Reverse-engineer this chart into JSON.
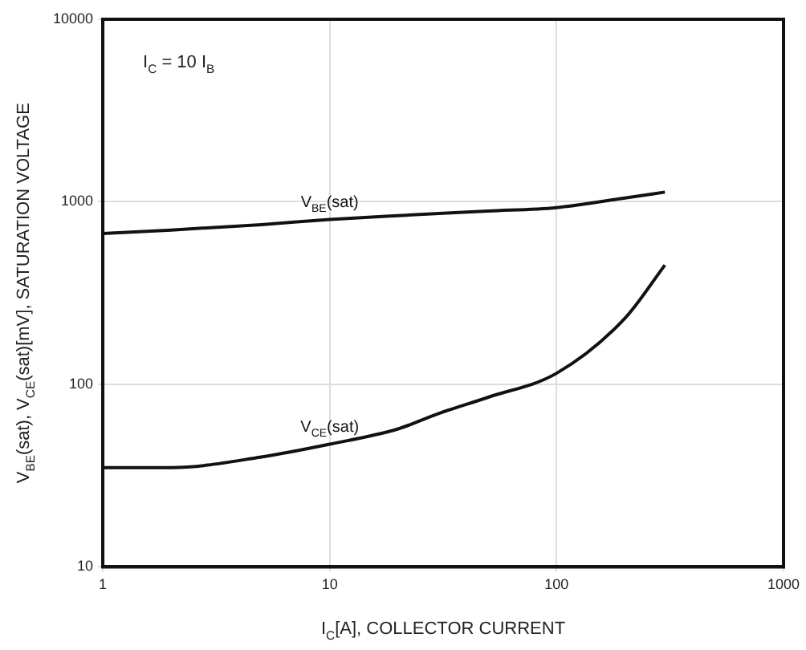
{
  "chart_data": {
    "type": "line",
    "xlabel": "I$_{C}$[A], COLLECTOR CURRENT",
    "ylabel": "V$_{BE}$(sat), V$_{CE}$(sat)[mV], SATURATION VOLTAGE",
    "annotations": [
      "I$_{C}$ = 10 I$_{B}$"
    ],
    "series": [
      {
        "name": "V$_{BE}$(sat)",
        "color": "#111111",
        "x": [
          1,
          2,
          5,
          10,
          20,
          50,
          100,
          200,
          300
        ],
        "values": [
          670,
          700,
          750,
          800,
          840,
          890,
          930,
          1050,
          1130
        ]
      },
      {
        "name": "V$_{CE}$(sat)",
        "color": "#111111",
        "x": [
          1,
          2,
          5,
          10,
          20,
          30,
          50,
          100,
          200,
          300
        ],
        "values": [
          35,
          35,
          40,
          47,
          57,
          69,
          85,
          115,
          230,
          450
        ]
      }
    ],
    "log": "xy",
    "xlim": [
      1,
      1000
    ],
    "ylim": [
      10,
      10000
    ],
    "xticks": [
      1,
      10,
      100,
      1000
    ],
    "yticks": [
      10,
      100,
      1000,
      10000
    ],
    "grid": true,
    "legend": false,
    "marker": "none",
    "line_style": "solid"
  }
}
